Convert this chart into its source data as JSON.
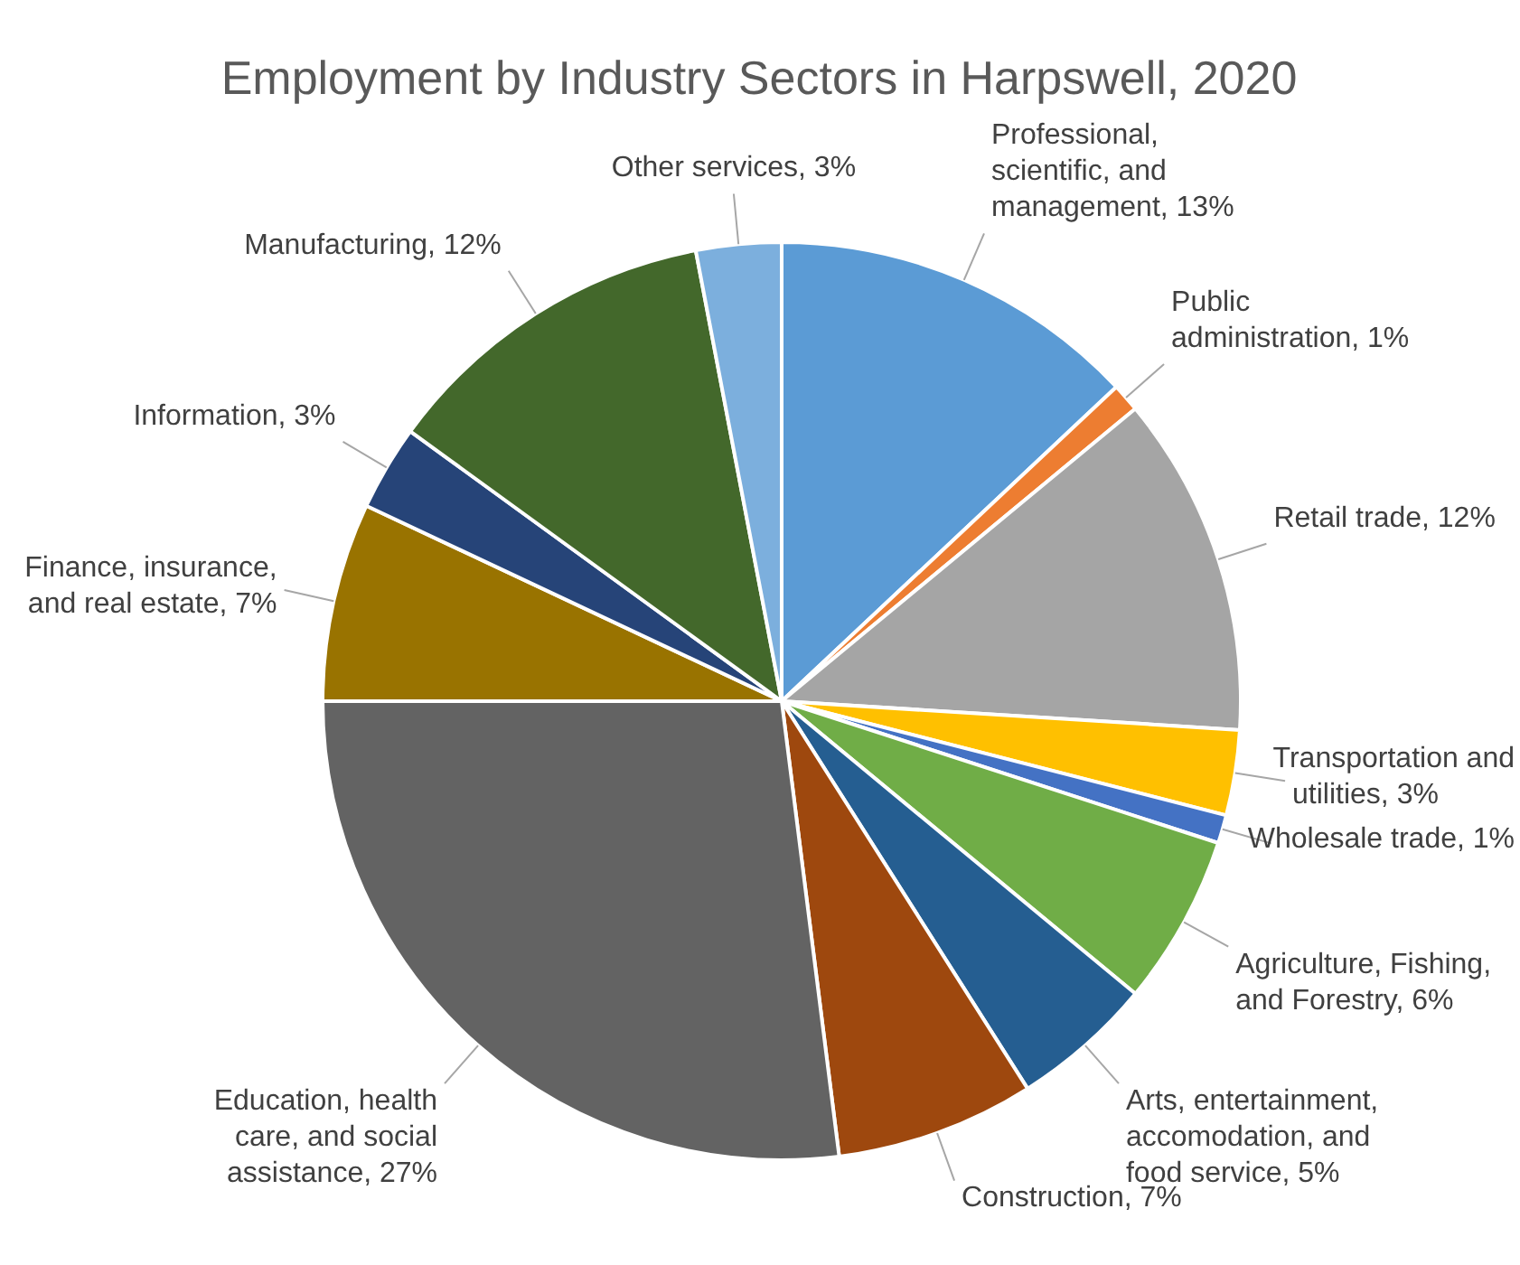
{
  "chart_data": {
    "type": "pie",
    "title": "Employment by Industry Sectors in Harpswell, 2020",
    "categories": [
      "Professional, scientific, and management",
      "Public administration",
      "Retail trade",
      "Transportation and utilities",
      "Wholesale trade",
      "Agriculture, Fishing, and Forestry",
      "Arts, entertainment, accomodation, and food service",
      "Construction",
      "Education, health care, and social assistance",
      "Finance, insurance, and real estate",
      "Information",
      "Manufacturing",
      "Other services"
    ],
    "values": [
      13,
      1,
      12,
      3,
      1,
      6,
      5,
      7,
      27,
      7,
      3,
      12,
      3
    ],
    "value_labels": [
      "13%",
      "1%",
      "12%",
      "3%",
      "1%",
      "6%",
      "5%",
      "7%",
      "27%",
      "7%",
      "3%",
      "12%",
      "3%"
    ],
    "colors": [
      "#5b9bd5",
      "#ed7d31",
      "#a5a5a5",
      "#ffc000",
      "#4472c4",
      "#70ad47",
      "#255e91",
      "#9e480e",
      "#636363",
      "#997300",
      "#264478",
      "#43682b",
      "#7cafdd"
    ],
    "legend": false
  }
}
